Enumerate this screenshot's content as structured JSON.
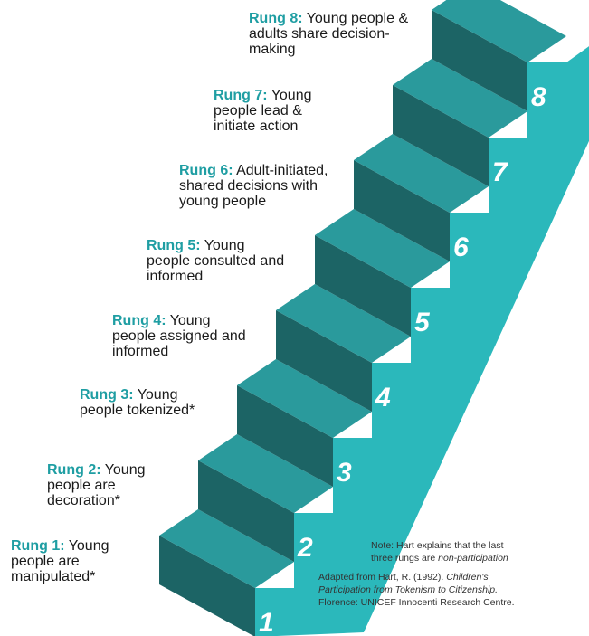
{
  "rungs": [
    {
      "number": "1",
      "title": "Rung 1:",
      "text": "Young people are manipulated*"
    },
    {
      "number": "2",
      "title": "Rung 2:",
      "text": "Young people are decoration*"
    },
    {
      "number": "3",
      "title": "Rung 3:",
      "text": "Young people tokenized*"
    },
    {
      "number": "4",
      "title": "Rung 4:",
      "text": "Young people assigned and informed"
    },
    {
      "number": "5",
      "title": "Rung 5:",
      "text": "Young people consulted and informed"
    },
    {
      "number": "6",
      "title": "Rung 6:",
      "text": "Adult-initiated, shared decisions with young people"
    },
    {
      "number": "7",
      "title": "Rung 7:",
      "text": "Young people lead & initiate action"
    },
    {
      "number": "8",
      "title": "Rung 8:",
      "text": "Young people & adults share decision-making"
    }
  ],
  "note": {
    "line1": "Note: Hart explains that the last",
    "line2_plain": "three rungs are ",
    "line2_italic": "non-participation"
  },
  "citation": {
    "line1_plain": "Adapted from Hart, R. (1992). ",
    "line1_italic": "Children's",
    "line2_italic": "Participation from Tokenism to Citizenship.",
    "line3": "Florence: UNICEF Innocenti Research Centre."
  },
  "colors": {
    "tread": "#2a9a9c",
    "riser": "#1c6465",
    "side": "#2bb8bb",
    "accent": "#1f9ea3"
  }
}
